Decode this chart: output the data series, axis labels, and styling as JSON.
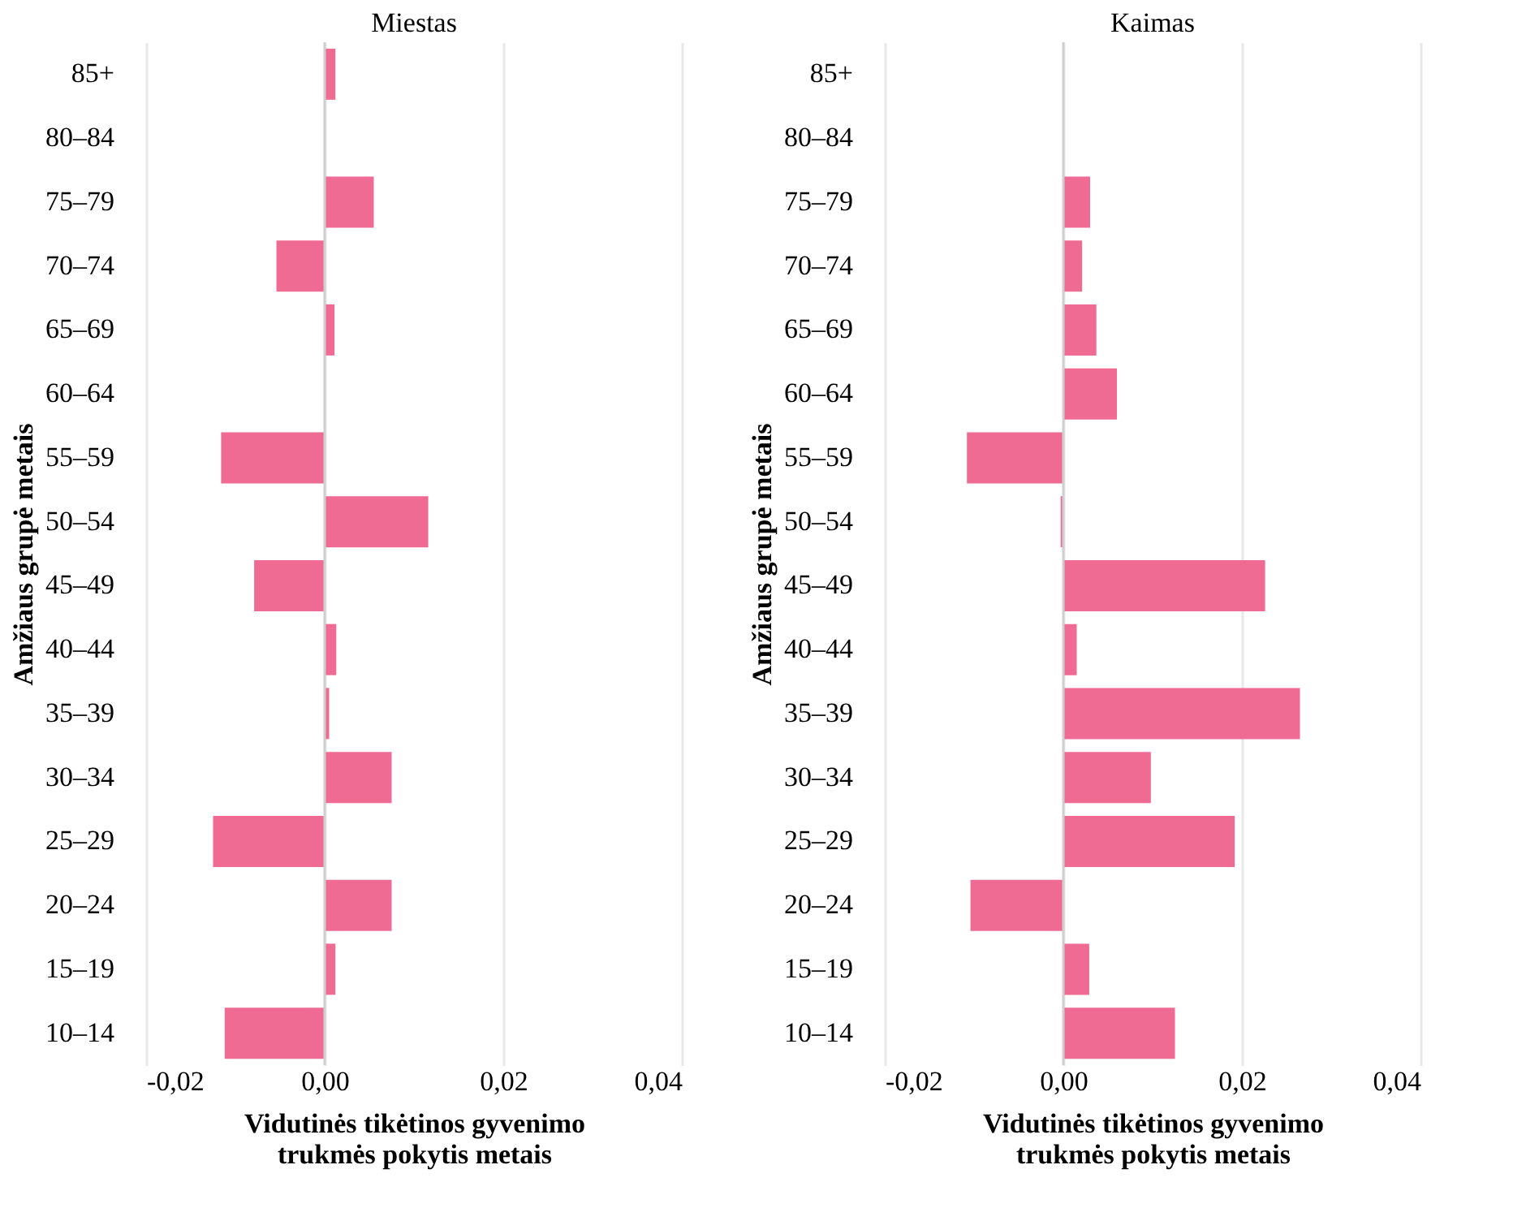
{
  "chart_data": [
    {
      "type": "bar",
      "orientation": "horizontal",
      "title": "Miestas",
      "xlabel": "Vidutinės tikėtinos gyvenimo trukmės pokytis metais",
      "ylabel": "Amžiaus grupė metais",
      "categories": [
        "85+",
        "80–84",
        "75–79",
        "70–74",
        "65–69",
        "60–64",
        "55–59",
        "50–54",
        "45–49",
        "40–44",
        "35–39",
        "30–34",
        "25–29",
        "20–24",
        "15–19",
        "10–14"
      ],
      "values": [
        0.0012,
        0,
        0.0055,
        -0.0054,
        0.0011,
        0,
        -0.0116,
        0.0116,
        -0.0079,
        0.0013,
        0.0005,
        0.0075,
        -0.0125,
        0.0075,
        0.0012,
        -0.0112
      ],
      "color": "#f06b93",
      "xlim": [
        -0.02,
        0.04
      ],
      "xticks": [
        {
          "value": -0.02,
          "label": "-0,02"
        },
        {
          "value": 0,
          "label": "0,00"
        },
        {
          "value": 0.02,
          "label": "0,02"
        },
        {
          "value": 0.04,
          "label": "0,04"
        }
      ],
      "grid": "x",
      "ref_lines": [
        {
          "axis": "x",
          "value": 0,
          "color": "#cfcfcf"
        }
      ]
    },
    {
      "type": "bar",
      "orientation": "horizontal",
      "title": "Kaimas",
      "xlabel": "Vidutinės tikėtinos gyvenimo trukmės pokytis metais",
      "ylabel": "Amžiaus grupė metais",
      "categories": [
        "85+",
        "80–84",
        "75–79",
        "70–74",
        "65–69",
        "60–64",
        "55–59",
        "50–54",
        "45–49",
        "40–44",
        "35–39",
        "30–34",
        "25–29",
        "20–24",
        "15–19",
        "10–14"
      ],
      "values": [
        0,
        0,
        0.003,
        0.0021,
        0.0037,
        0.006,
        -0.0108,
        -0.0003,
        0.0226,
        0.0015,
        0.0265,
        0.0098,
        0.0192,
        -0.0104,
        0.0029,
        0.0125
      ],
      "color": "#f06b93",
      "xlim": [
        -0.02,
        0.04
      ],
      "xticks": [
        {
          "value": -0.02,
          "label": "-0,02"
        },
        {
          "value": 0,
          "label": "0,00"
        },
        {
          "value": 0.02,
          "label": "0,02"
        },
        {
          "value": 0.04,
          "label": "0,04"
        }
      ],
      "grid": "x",
      "ref_lines": [
        {
          "axis": "x",
          "value": 0,
          "color": "#cfcfcf"
        }
      ]
    }
  ]
}
